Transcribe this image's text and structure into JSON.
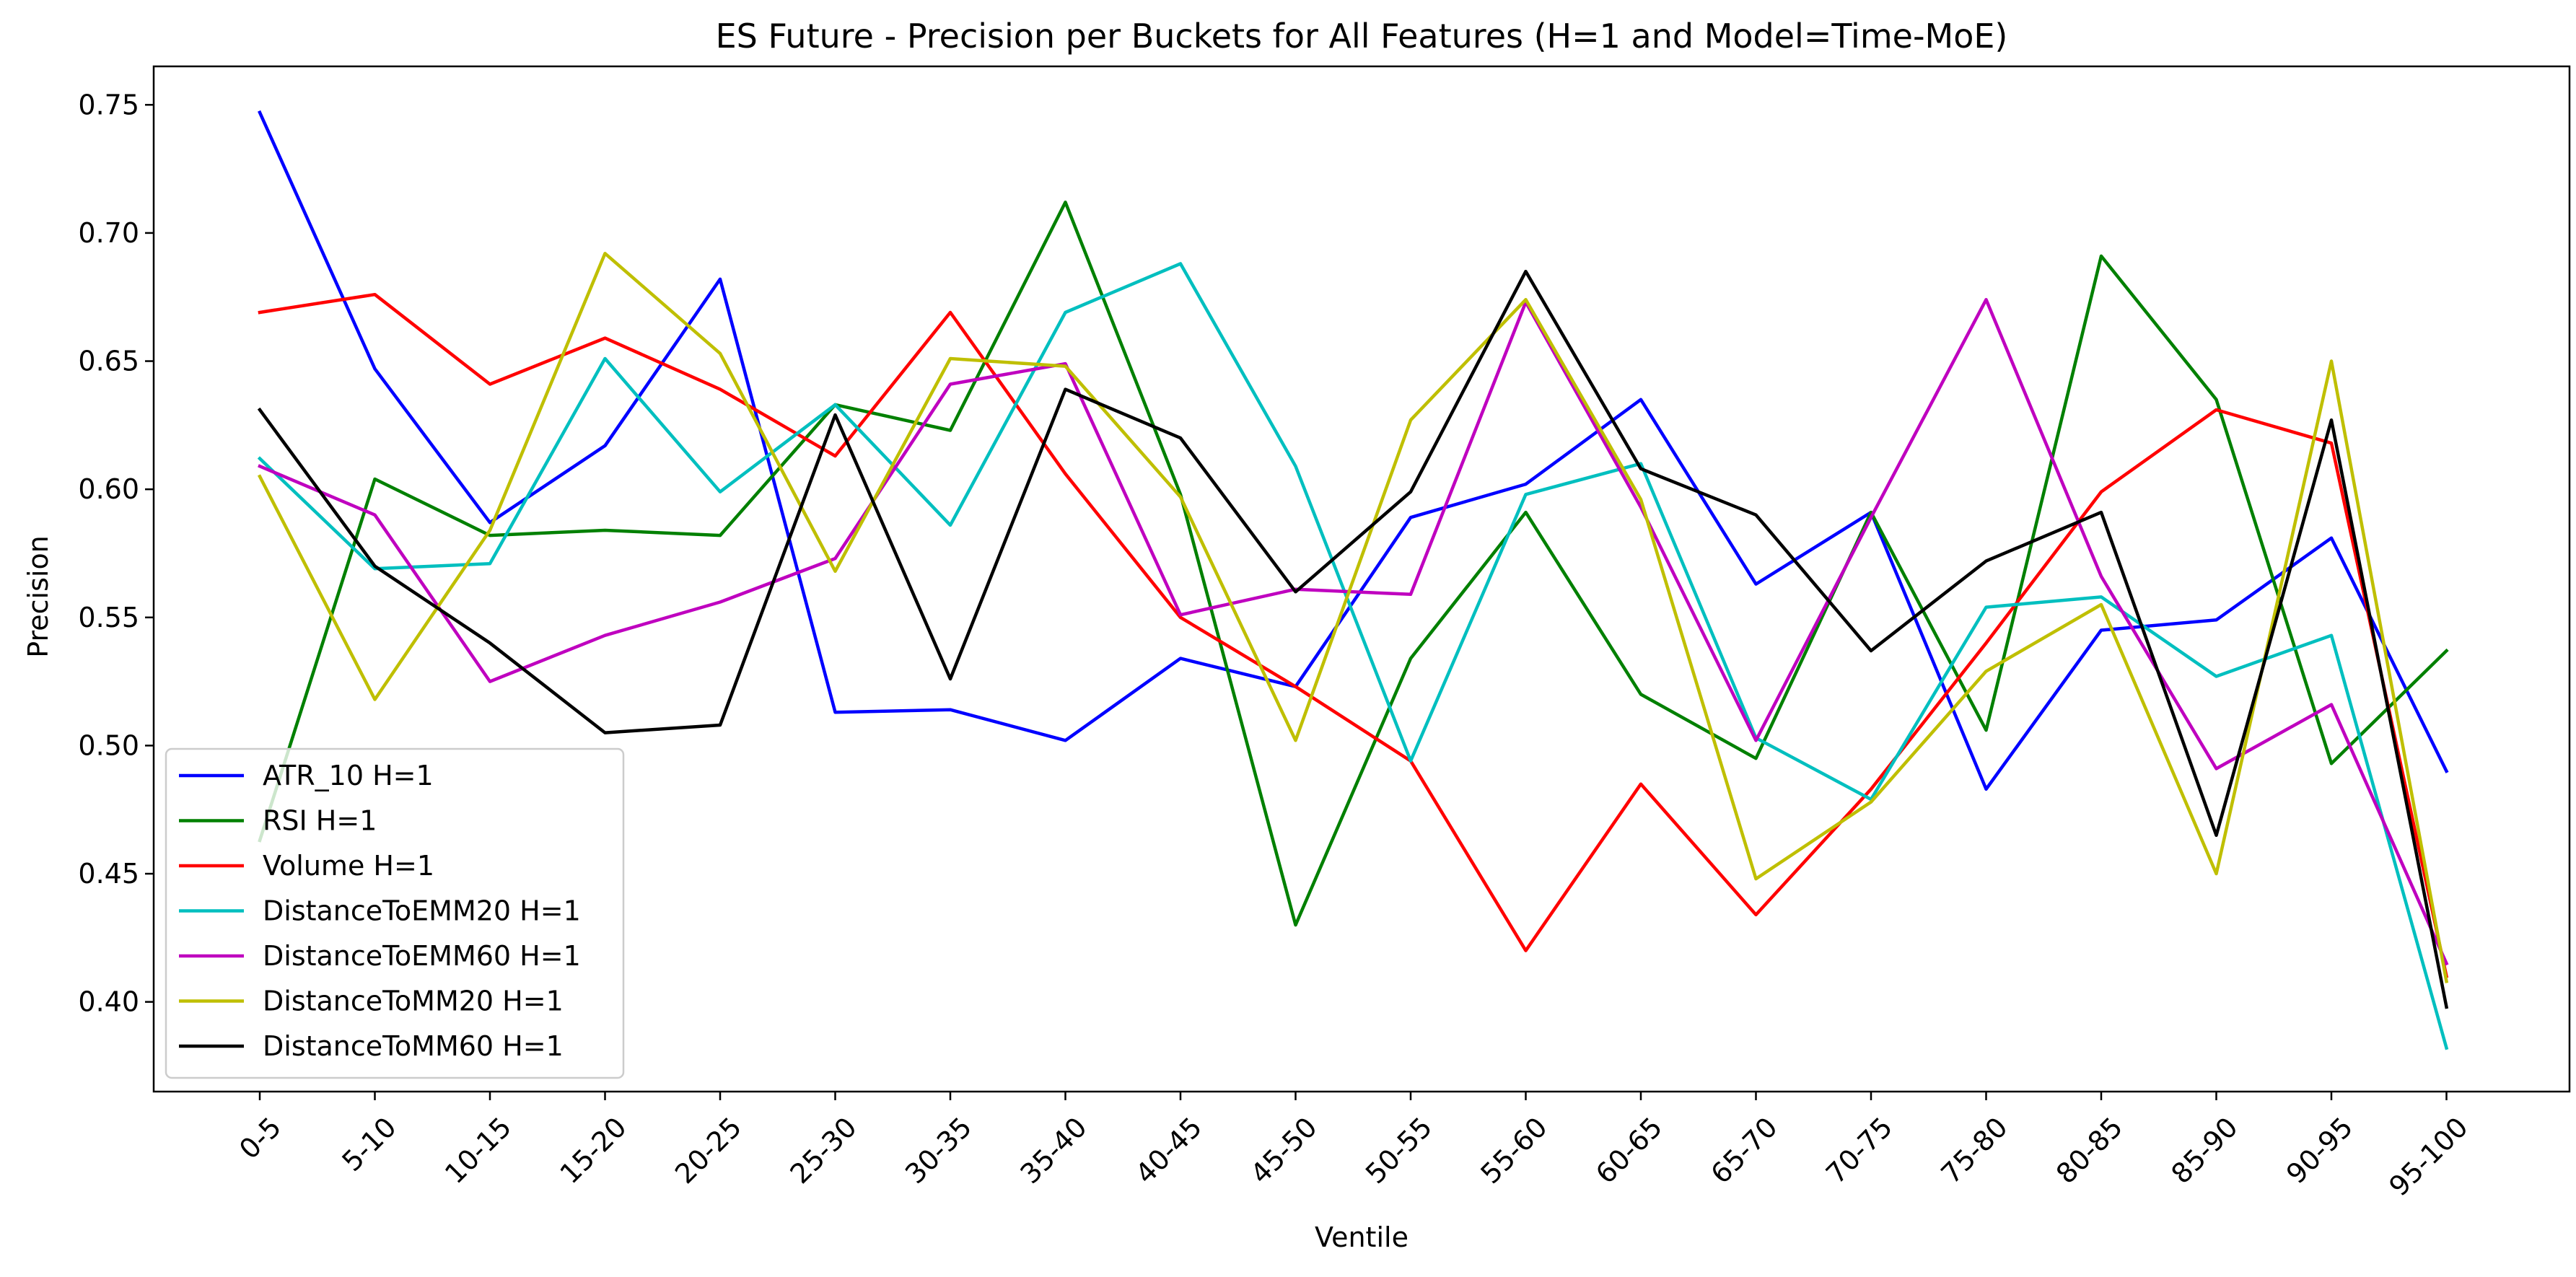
{
  "chart_data": {
    "type": "line",
    "title": "ES Future - Precision per Buckets for All Features (H=1 and Model=Time-MoE)",
    "xlabel": "Ventile",
    "ylabel": "Precision",
    "ylim": [
      0.365,
      0.765
    ],
    "yticks": [
      "0.40",
      "0.45",
      "0.50",
      "0.55",
      "0.60",
      "0.65",
      "0.70",
      "0.75"
    ],
    "grid": false,
    "legend_position": "lower-left",
    "categories": [
      "0-5",
      "5-10",
      "10-15",
      "15-20",
      "20-25",
      "25-30",
      "30-35",
      "35-40",
      "40-45",
      "45-50",
      "50-55",
      "55-60",
      "60-65",
      "65-70",
      "70-75",
      "75-80",
      "80-85",
      "85-90",
      "90-95",
      "95-100"
    ],
    "series": [
      {
        "name": "ATR_10 H=1",
        "color": "#0000ff",
        "values": [
          0.747,
          0.647,
          0.587,
          0.617,
          0.682,
          0.513,
          0.514,
          0.502,
          0.534,
          0.523,
          0.589,
          0.602,
          0.635,
          0.563,
          0.591,
          0.483,
          0.545,
          0.549,
          0.581,
          0.49
        ]
      },
      {
        "name": "RSI H=1",
        "color": "#008000",
        "values": [
          0.463,
          0.604,
          0.582,
          0.584,
          0.582,
          0.633,
          0.623,
          0.712,
          0.598,
          0.43,
          0.534,
          0.591,
          0.52,
          0.495,
          0.591,
          0.506,
          0.691,
          0.635,
          0.493,
          0.537
        ]
      },
      {
        "name": "Volume H=1",
        "color": "#ff0000",
        "values": [
          0.669,
          0.676,
          0.641,
          0.659,
          0.639,
          0.613,
          0.669,
          0.606,
          0.55,
          0.523,
          0.494,
          0.42,
          0.485,
          0.434,
          0.483,
          0.54,
          0.599,
          0.631,
          0.618,
          0.41
        ]
      },
      {
        "name": "DistanceToEMM20 H=1",
        "color": "#00bfbf",
        "values": [
          0.612,
          0.569,
          0.571,
          0.651,
          0.599,
          0.633,
          0.586,
          0.669,
          0.688,
          0.609,
          0.494,
          0.598,
          0.61,
          0.503,
          0.479,
          0.554,
          0.558,
          0.527,
          0.543,
          0.382
        ]
      },
      {
        "name": "DistanceToEMM60 H=1",
        "color": "#bf00bf",
        "values": [
          0.609,
          0.59,
          0.525,
          0.543,
          0.556,
          0.573,
          0.641,
          0.649,
          0.551,
          0.561,
          0.559,
          0.673,
          0.593,
          0.502,
          0.589,
          0.674,
          0.566,
          0.491,
          0.516,
          0.415
        ]
      },
      {
        "name": "DistanceToMM20 H=1",
        "color": "#bfbf00",
        "values": [
          0.605,
          0.518,
          0.584,
          0.692,
          0.653,
          0.568,
          0.651,
          0.648,
          0.597,
          0.502,
          0.627,
          0.674,
          0.596,
          0.448,
          0.478,
          0.529,
          0.555,
          0.45,
          0.65,
          0.408
        ]
      },
      {
        "name": "DistanceToMM60 H=1",
        "color": "#000000",
        "values": [
          0.631,
          0.57,
          0.54,
          0.505,
          0.508,
          0.629,
          0.526,
          0.639,
          0.62,
          0.56,
          0.599,
          0.685,
          0.608,
          0.59,
          0.537,
          0.572,
          0.591,
          0.465,
          0.627,
          0.398
        ]
      }
    ]
  }
}
